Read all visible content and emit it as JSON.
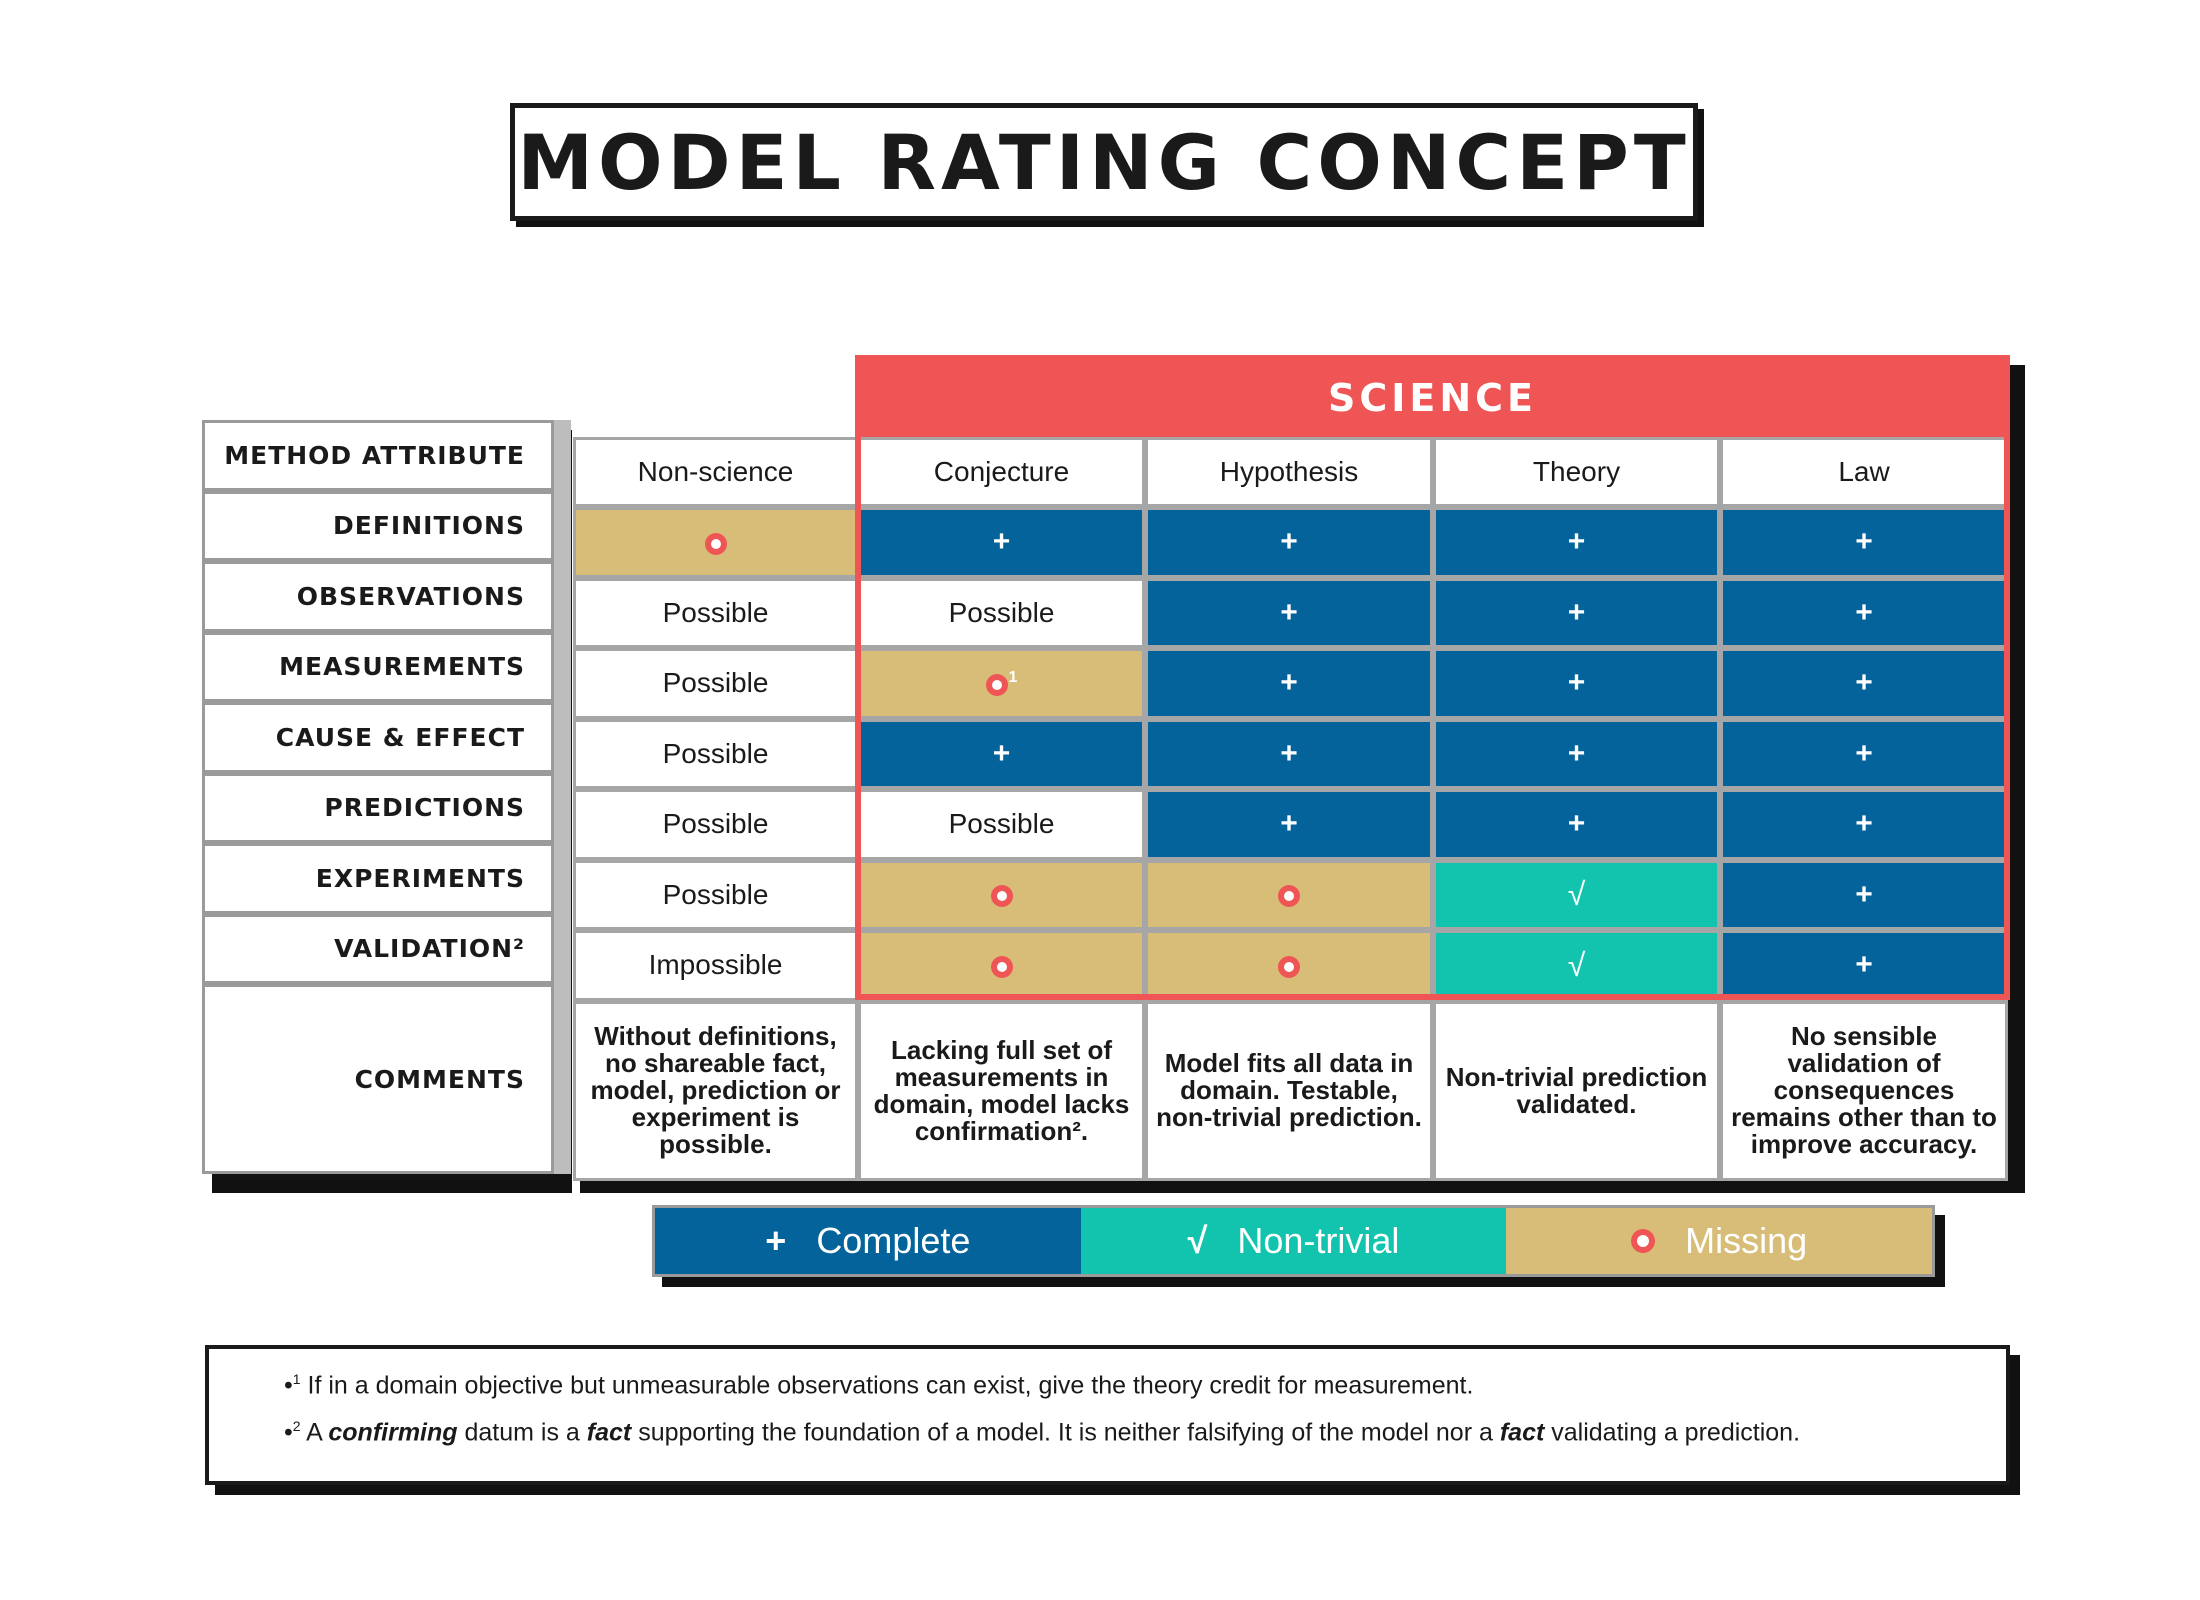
{
  "title": "MODEL RATING CONCEPT",
  "science_label": "SCIENCE",
  "attributes": [
    "METHOD ATTRIBUTE",
    "DEFINITIONS",
    "OBSERVATIONS",
    "MEASUREMENTS",
    "CAUSE & EFFECT",
    "PREDICTIONS",
    "EXPERIMENTS",
    "VALIDATION²",
    "COMMENTS"
  ],
  "columns": [
    "Non-science",
    "Conjecture",
    "Hypothesis",
    "Theory",
    "Law"
  ],
  "rows": [
    [
      {
        "kind": "missing"
      },
      {
        "kind": "complete"
      },
      {
        "kind": "complete"
      },
      {
        "kind": "complete"
      },
      {
        "kind": "complete"
      }
    ],
    [
      {
        "kind": "text",
        "text": "Possible"
      },
      {
        "kind": "text",
        "text": "Possible"
      },
      {
        "kind": "complete"
      },
      {
        "kind": "complete"
      },
      {
        "kind": "complete"
      }
    ],
    [
      {
        "kind": "text",
        "text": "Possible"
      },
      {
        "kind": "missing",
        "sup": "1"
      },
      {
        "kind": "complete"
      },
      {
        "kind": "complete"
      },
      {
        "kind": "complete"
      }
    ],
    [
      {
        "kind": "text",
        "text": "Possible"
      },
      {
        "kind": "complete"
      },
      {
        "kind": "complete"
      },
      {
        "kind": "complete"
      },
      {
        "kind": "complete"
      }
    ],
    [
      {
        "kind": "text",
        "text": "Possible"
      },
      {
        "kind": "text",
        "text": "Possible"
      },
      {
        "kind": "complete"
      },
      {
        "kind": "complete"
      },
      {
        "kind": "complete"
      }
    ],
    [
      {
        "kind": "text",
        "text": "Possible"
      },
      {
        "kind": "missing"
      },
      {
        "kind": "missing"
      },
      {
        "kind": "nontrivial"
      },
      {
        "kind": "complete"
      }
    ],
    [
      {
        "kind": "text",
        "text": "Impossible"
      },
      {
        "kind": "missing"
      },
      {
        "kind": "missing"
      },
      {
        "kind": "nontrivial"
      },
      {
        "kind": "complete"
      }
    ]
  ],
  "comments": [
    "Without definitions, no shareable fact, model, prediction or experiment is possible.",
    "Lacking full set of measurements in domain, model lacks confirmation².",
    "Model fits all data in domain. Testable, non-trivial prediction.",
    "Non-trivial prediction validated.",
    "No sensible validation of consequences remains other than to improve accuracy."
  ],
  "symbols": {
    "complete": "+",
    "nontrivial": "√"
  },
  "legend": {
    "complete": "Complete",
    "nontrivial": "Non-trivial",
    "missing": "Missing"
  },
  "colors": {
    "complete": "#03639a",
    "nontrivial": "#12c4ad",
    "missing": "#d8bd78",
    "accent": "#ef5554"
  },
  "notes": {
    "n1_prefix": "•",
    "n1_sup": "1",
    "n1_text": " If in a domain objective but unmeasurable observations can exist, give the theory credit for measurement.",
    "n2_prefix": "•",
    "n2_sup": "2",
    "n2_a": " A ",
    "n2_b1": "confirming",
    "n2_c": " datum is a ",
    "n2_b2": "fact",
    "n2_d": " supporting the foundation of a model. It is neither falsifying of the model nor a ",
    "n2_b3": "fact",
    "n2_e": " validating a prediction."
  }
}
